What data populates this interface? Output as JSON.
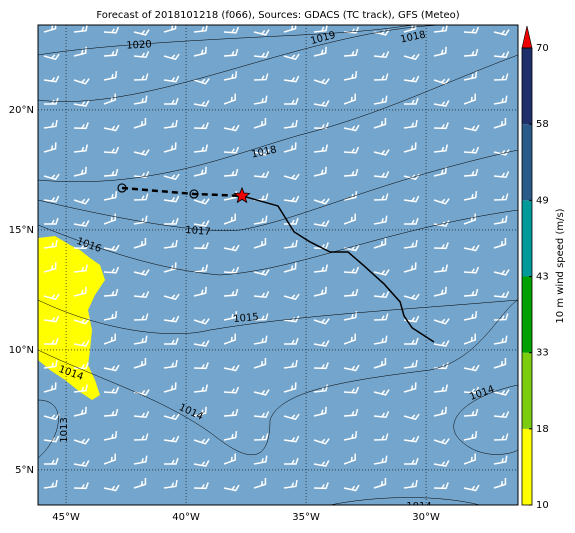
{
  "chart_data": {
    "type": "map",
    "title": "Forecast of 2018101218 (f066), Sources: GDACS (TC track), GFS (Meteo)",
    "xlim": [
      -46.17,
      -26.17
    ],
    "ylim": [
      3.54,
      23.54
    ],
    "xticks": [
      {
        "value": -45,
        "label": "45°W"
      },
      {
        "value": -40,
        "label": "40°W"
      },
      {
        "value": -35,
        "label": "35°W"
      },
      {
        "value": -30,
        "label": "30°W"
      }
    ],
    "yticks": [
      {
        "value": 5,
        "label": "5°N"
      },
      {
        "value": 10,
        "label": "10°N"
      },
      {
        "value": 15,
        "label": "15°N"
      },
      {
        "value": 20,
        "label": "20°N"
      }
    ],
    "grid": true,
    "ocean_color": "#74a5cc",
    "land_color": "#ffff00",
    "past_track": {
      "lon": [
        -42.67,
        -39.67,
        -37.67
      ],
      "lat": [
        16.75,
        16.5,
        16.42
      ]
    },
    "forecast_track": {
      "lon": [
        -37.67,
        -36.17,
        -35.5,
        -34.83,
        -34,
        -33.25,
        -32.58,
        -31.75,
        -31.08,
        -30.92,
        -30.58,
        -29.67
      ],
      "lat": [
        16.42,
        16.0,
        14.92,
        14.5,
        14.08,
        14.08,
        13.5,
        12.75,
        12.0,
        11.42,
        10.92,
        10.33
      ]
    },
    "isobar_labels": [
      1020,
      1019,
      1018,
      1018,
      1017,
      1016,
      1015,
      1014,
      1014,
      1014,
      1013,
      1014
    ],
    "colorbar": {
      "label": "10 m wind speed (m/s)",
      "bounds": [
        10,
        18,
        33,
        43,
        49,
        58,
        70
      ],
      "colors": [
        "#ffff00",
        "#7ccc10",
        "#00a000",
        "#009a9a",
        "#2a5a8a",
        "#1f2f6a"
      ],
      "extend_color": "#ee0000"
    }
  }
}
